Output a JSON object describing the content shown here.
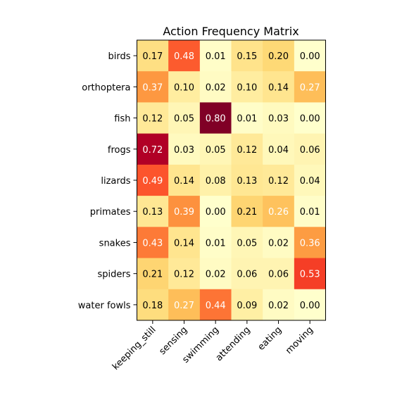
{
  "chart_data": {
    "type": "heatmap",
    "title": "Action Frequency Matrix",
    "xlabel": "",
    "ylabel": "",
    "x_categories": [
      "keeping_still",
      "sensing",
      "swimming",
      "attending",
      "eating",
      "moving"
    ],
    "y_categories": [
      "birds",
      "orthoptera",
      "fish",
      "frogs",
      "lizards",
      "primates",
      "snakes",
      "spiders",
      "water fowls"
    ],
    "values": [
      [
        0.17,
        0.48,
        0.01,
        0.15,
        0.2,
        0.0
      ],
      [
        0.37,
        0.1,
        0.02,
        0.1,
        0.14,
        0.27
      ],
      [
        0.12,
        0.05,
        0.8,
        0.01,
        0.03,
        0.0
      ],
      [
        0.72,
        0.03,
        0.05,
        0.12,
        0.04,
        0.06
      ],
      [
        0.49,
        0.14,
        0.08,
        0.13,
        0.12,
        0.04
      ],
      [
        0.13,
        0.39,
        0.0,
        0.21,
        0.26,
        0.01
      ],
      [
        0.43,
        0.14,
        0.01,
        0.05,
        0.02,
        0.36
      ],
      [
        0.21,
        0.12,
        0.02,
        0.06,
        0.06,
        0.53
      ],
      [
        0.18,
        0.27,
        0.44,
        0.09,
        0.02,
        0.0
      ]
    ],
    "value_format": "0.00",
    "colormap": "YlOrRd",
    "color_range": [
      0.0,
      0.8
    ],
    "label_light_threshold": 0.25,
    "label_colors": {
      "dark": "#000000",
      "light": "#ffffff"
    },
    "legend": "none",
    "grid": false,
    "x_tick_rotation_deg": 45
  }
}
